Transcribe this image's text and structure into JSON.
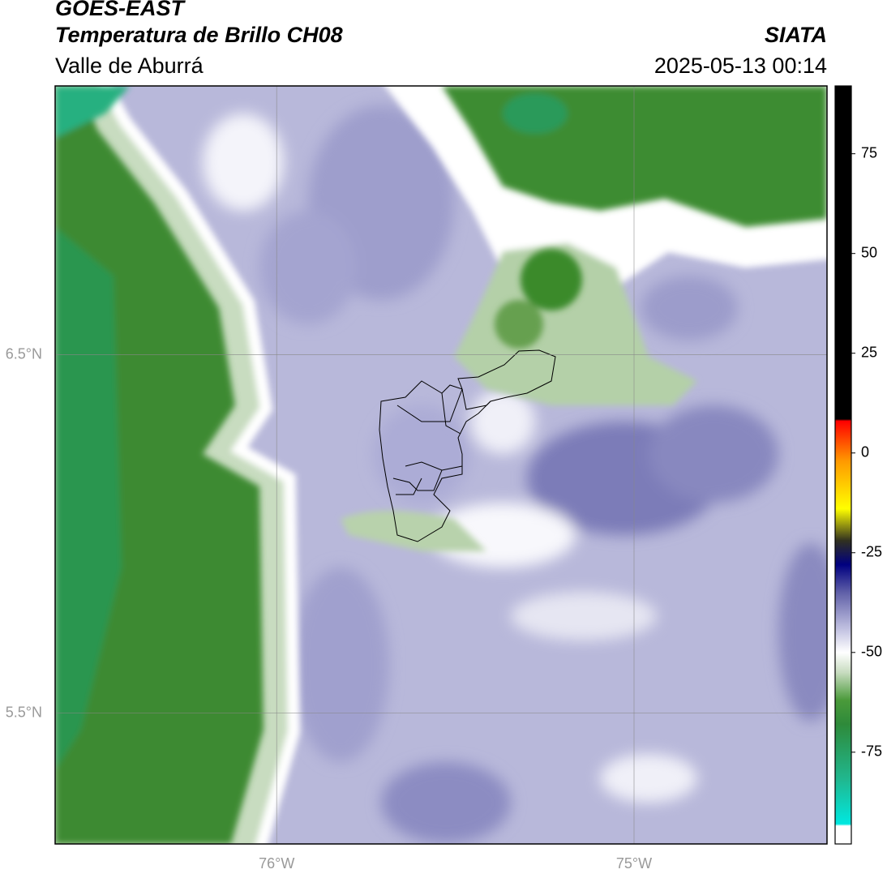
{
  "header": {
    "title": "GOES-EAST",
    "subtitle": "Temperatura de Brillo CH08",
    "region": "Valle de Aburrá",
    "source": "SIATA",
    "datetime": "2025-05-13 00:14"
  },
  "map": {
    "xlim": [
      -76.62,
      -74.46
    ],
    "ylim": [
      5.135,
      7.25
    ],
    "xticks": [
      {
        "value": -76,
        "label": "76°W"
      },
      {
        "value": -75,
        "label": "75°W"
      }
    ],
    "yticks": [
      {
        "value": 6.5,
        "label": "6.5°N"
      },
      {
        "value": 5.5,
        "label": "5.5°N"
      }
    ],
    "grid": true
  },
  "colorbar": {
    "lim": [
      -98,
      92
    ],
    "ticks": [
      -75,
      -50,
      -25,
      0,
      25,
      50,
      75
    ],
    "stops": [
      {
        "value": -98,
        "color": "#ffffff"
      },
      {
        "value": -93.5,
        "color": "#ffffff"
      },
      {
        "value": -93,
        "color": "#00e8e0"
      },
      {
        "value": -82,
        "color": "#20b890"
      },
      {
        "value": -68,
        "color": "#2e8a3a"
      },
      {
        "value": -62,
        "color": "#4a9a3a"
      },
      {
        "value": -55,
        "color": "#c8dcc0"
      },
      {
        "value": -50,
        "color": "#ffffff"
      },
      {
        "value": -44,
        "color": "#c0c0e0"
      },
      {
        "value": -35,
        "color": "#6060a8"
      },
      {
        "value": -28,
        "color": "#000080"
      },
      {
        "value": -22,
        "color": "#303020"
      },
      {
        "value": -14,
        "color": "#ffff00"
      },
      {
        "value": -2,
        "color": "#ff9900"
      },
      {
        "value": 8,
        "color": "#ff0000"
      },
      {
        "value": 8.5,
        "color": "#000000"
      },
      {
        "value": 92,
        "color": "#000000"
      }
    ]
  }
}
